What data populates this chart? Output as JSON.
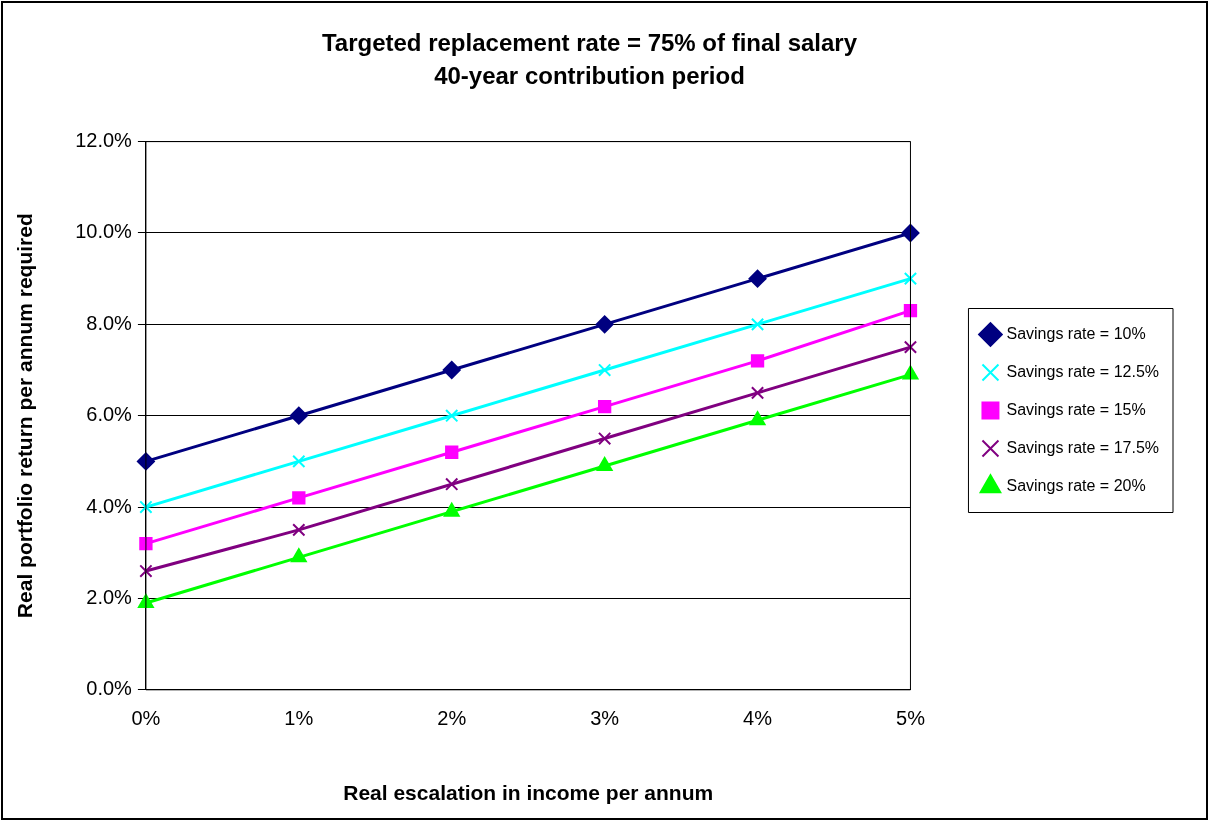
{
  "chart_data": {
    "type": "line",
    "title": "Targeted replacement rate = 75% of final salary",
    "subtitle": "40-year contribution period",
    "xlabel": "Real escalation in income per annum",
    "ylabel": "Real portfolio return per annum required",
    "categories": [
      "0%",
      "1%",
      "2%",
      "3%",
      "4%",
      "5%"
    ],
    "series": [
      {
        "name": "Savings rate = 10%",
        "color": "#000080",
        "marker": "diamond",
        "values": [
          5,
          6,
          7,
          8,
          9,
          10
        ]
      },
      {
        "name": "Savings rate = 12.5%",
        "color": "#00ffff",
        "marker": "cross",
        "values": [
          4,
          5,
          6,
          7,
          8,
          9
        ]
      },
      {
        "name": "Savings rate = 15%",
        "color": "#ff00ff",
        "marker": "square",
        "values": [
          3.2,
          4.2,
          5.2,
          6.2,
          7.2,
          8.3
        ]
      },
      {
        "name": "Savings rate = 17.5%",
        "color": "#800080",
        "marker": "cross",
        "values": [
          2.6,
          3.5,
          4.5,
          5.5,
          6.5,
          7.5
        ]
      },
      {
        "name": "Savings rate = 20%",
        "color": "#00ff00",
        "marker": "triangle",
        "values": [
          1.9,
          2.9,
          3.9,
          4.9,
          5.9,
          6.9
        ]
      }
    ],
    "ylim": [
      0,
      12
    ],
    "yticks": [
      {
        "value": 0,
        "label": "0.0%"
      },
      {
        "value": 2,
        "label": "2.0%"
      },
      {
        "value": 4,
        "label": "4.0%"
      },
      {
        "value": 6,
        "label": "6.0%"
      },
      {
        "value": 8,
        "label": "8.0%"
      },
      {
        "value": 10,
        "label": "10.0%"
      },
      {
        "value": 12,
        "label": "12.0%"
      }
    ],
    "grid": "y",
    "legend": "right",
    "line_style": "solid"
  }
}
